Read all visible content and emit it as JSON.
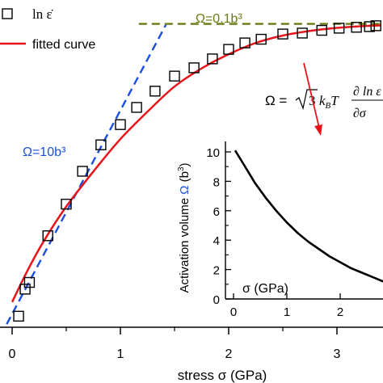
{
  "chart_data": [
    {
      "type": "scatter",
      "xlabel": "stress σ (GPa)",
      "x_ticks": [
        "0",
        "1",
        "2",
        "3"
      ],
      "xlim": [
        -0.1,
        3.4
      ],
      "ylim": [
        0,
        1
      ],
      "y_axis_labels_shown": false,
      "grid": false,
      "legend_position": "top-left",
      "legend": [
        {
          "kind": "marker",
          "label": "ln ε̇"
        },
        {
          "kind": "line",
          "label": "fitted curve",
          "color": "#e8141b"
        }
      ],
      "series": [
        {
          "name": "ln ε̇",
          "marker": "open-square",
          "color": "#000000",
          "x": [
            0.06,
            0.12,
            0.16,
            0.33,
            0.5,
            0.65,
            0.82,
            1.0,
            1.15,
            1.32,
            1.5,
            1.68,
            1.85,
            2.0,
            2.15,
            2.3,
            2.5,
            2.68,
            2.86,
            3.02,
            3.18,
            3.3,
            3.36
          ],
          "y": [
            0.036,
            0.124,
            0.146,
            0.298,
            0.401,
            0.508,
            0.594,
            0.66,
            0.716,
            0.769,
            0.818,
            0.845,
            0.874,
            0.905,
            0.926,
            0.938,
            0.955,
            0.958,
            0.967,
            0.974,
            0.977,
            0.979,
            0.982
          ]
        },
        {
          "name": "fitted curve",
          "color": "#e8141b",
          "x": [
            0.0,
            0.15,
            0.3,
            0.5,
            0.75,
            1.0,
            1.25,
            1.5,
            1.75,
            2.0,
            2.25,
            2.5,
            2.75,
            3.0,
            3.25,
            3.4
          ],
          "y": [
            0.082,
            0.19,
            0.285,
            0.393,
            0.507,
            0.613,
            0.702,
            0.784,
            0.843,
            0.889,
            0.926,
            0.95,
            0.965,
            0.975,
            0.981,
            0.983
          ]
        },
        {
          "name": "Ω=10b³ slope",
          "color": "#1a4fe0",
          "style": "dashed",
          "x": [
            -0.05,
            1.42
          ],
          "y": [
            0.01,
            0.985
          ]
        },
        {
          "name": "Ω=0.1b³ slope",
          "color": "#6b7a14",
          "style": "dashed",
          "x": [
            1.17,
            3.4
          ],
          "y": [
            0.988,
            0.988
          ]
        }
      ],
      "annotations": [
        {
          "text": "Ω=0.1b³",
          "color": "#6b7a14"
        },
        {
          "text": "Ω=10b³",
          "color": "#1a4fe0"
        },
        {
          "text": "Ω = √3 k_B T ∂lnε̇/∂σ",
          "color": "#000000"
        }
      ],
      "arrow_color": "#e8141b"
    },
    {
      "type": "line",
      "ylabel": "Activation volume Ω (b³)",
      "xlabel": "σ (GPa)",
      "x_ticks": [
        "0",
        "1",
        "2"
      ],
      "y_ticks": [
        "0",
        "2",
        "4",
        "6",
        "8",
        "10"
      ],
      "xlim": [
        -0.1,
        2.9
      ],
      "ylim": [
        0,
        11
      ],
      "grid": false,
      "series": [
        {
          "name": "Ω",
          "color": "#000000",
          "x": [
            0.03,
            0.2,
            0.4,
            0.6,
            0.8,
            1.0,
            1.2,
            1.4,
            1.6,
            1.8,
            2.0,
            2.2,
            2.4,
            2.6,
            2.8,
            2.9
          ],
          "y": [
            10.1,
            9.1,
            7.9,
            6.9,
            6.0,
            5.2,
            4.5,
            3.9,
            3.4,
            2.9,
            2.5,
            2.1,
            1.8,
            1.5,
            1.2,
            1.0
          ]
        }
      ]
    }
  ]
}
